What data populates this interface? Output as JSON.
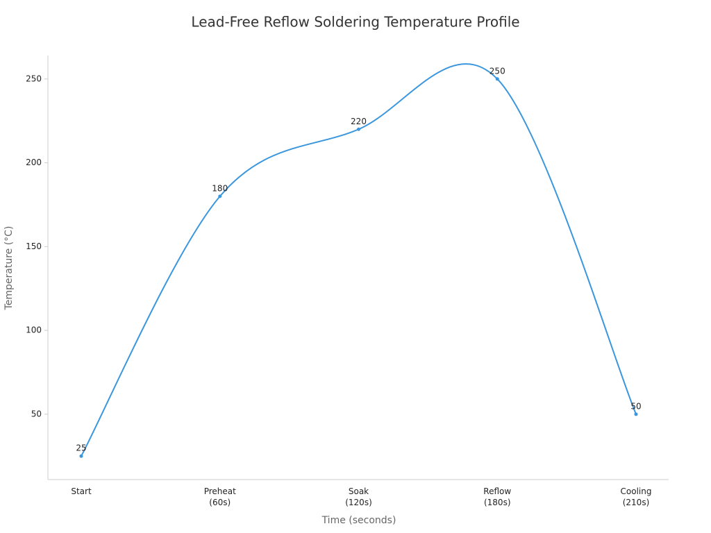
{
  "chart_data": {
    "type": "line",
    "title": "Lead-Free Reflow Soldering Temperature Profile",
    "x_label": "Time (seconds)",
    "y_label": "Temperature (°C)",
    "categories": [
      "Start",
      "Preheat\n(60s)",
      "Soak\n(120s)",
      "Reflow\n(180s)",
      "Cooling\n(210s)"
    ],
    "values": [
      25,
      180,
      220,
      250,
      50
    ],
    "color": "#3a96dd",
    "ylim": [
      11,
      264
    ],
    "yticks": [
      50,
      100,
      150,
      200,
      250
    ],
    "grid": false,
    "smooth": true
  }
}
